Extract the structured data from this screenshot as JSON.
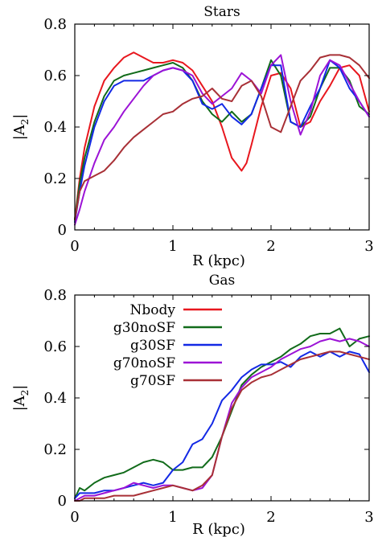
{
  "colors": {
    "Nbody": "#e8171e",
    "g30noSF": "#116b1a",
    "g30SF": "#1329e5",
    "g70noSF": "#9c13d6",
    "g70SF": "#a83036"
  },
  "chart_data": [
    {
      "type": "line",
      "title": "Stars",
      "xlabel": "R (kpc)",
      "ylabel": "|A2|",
      "xlim": [
        0,
        3
      ],
      "ylim": [
        0,
        0.8
      ],
      "xticks": [
        "0",
        "1",
        "2",
        "3"
      ],
      "yticks": [
        "0",
        "0.2",
        "0.4",
        "0.6",
        "0.8"
      ],
      "legend": "none",
      "series": [
        {
          "name": "Nbody",
          "x": [
            0,
            0.05,
            0.1,
            0.2,
            0.3,
            0.4,
            0.5,
            0.6,
            0.7,
            0.8,
            0.9,
            1.0,
            1.1,
            1.2,
            1.3,
            1.4,
            1.5,
            1.6,
            1.7,
            1.75,
            1.8,
            1.9,
            2.0,
            2.1,
            2.2,
            2.3,
            2.4,
            2.5,
            2.6,
            2.7,
            2.8,
            2.9,
            3.0
          ],
          "y": [
            0.04,
            0.2,
            0.32,
            0.48,
            0.58,
            0.63,
            0.67,
            0.69,
            0.67,
            0.65,
            0.65,
            0.66,
            0.65,
            0.62,
            0.56,
            0.5,
            0.4,
            0.28,
            0.23,
            0.26,
            0.33,
            0.48,
            0.6,
            0.61,
            0.55,
            0.4,
            0.42,
            0.5,
            0.56,
            0.63,
            0.64,
            0.6,
            0.46
          ]
        },
        {
          "name": "g30noSF",
          "x": [
            0,
            0.05,
            0.1,
            0.2,
            0.3,
            0.4,
            0.5,
            0.6,
            0.7,
            0.8,
            0.9,
            1.0,
            1.1,
            1.2,
            1.3,
            1.4,
            1.5,
            1.6,
            1.7,
            1.8,
            1.9,
            2.0,
            2.1,
            2.2,
            2.3,
            2.4,
            2.5,
            2.6,
            2.7,
            2.8,
            2.9,
            3.0
          ],
          "y": [
            0.04,
            0.18,
            0.28,
            0.42,
            0.52,
            0.58,
            0.6,
            0.61,
            0.62,
            0.63,
            0.64,
            0.65,
            0.63,
            0.58,
            0.5,
            0.45,
            0.42,
            0.46,
            0.42,
            0.45,
            0.55,
            0.66,
            0.6,
            0.42,
            0.4,
            0.44,
            0.55,
            0.63,
            0.63,
            0.58,
            0.48,
            0.45
          ]
        },
        {
          "name": "g30SF",
          "x": [
            0,
            0.05,
            0.1,
            0.2,
            0.3,
            0.4,
            0.5,
            0.6,
            0.7,
            0.8,
            0.9,
            1.0,
            1.1,
            1.2,
            1.3,
            1.4,
            1.5,
            1.6,
            1.7,
            1.8,
            1.9,
            2.0,
            2.1,
            2.2,
            2.3,
            2.4,
            2.5,
            2.6,
            2.7,
            2.8,
            2.9,
            3.0
          ],
          "y": [
            0.03,
            0.15,
            0.25,
            0.4,
            0.5,
            0.56,
            0.58,
            0.58,
            0.58,
            0.6,
            0.62,
            0.63,
            0.62,
            0.58,
            0.49,
            0.47,
            0.49,
            0.44,
            0.41,
            0.45,
            0.55,
            0.64,
            0.64,
            0.42,
            0.4,
            0.48,
            0.55,
            0.66,
            0.63,
            0.55,
            0.5,
            0.44
          ]
        },
        {
          "name": "g70noSF",
          "x": [
            0,
            0.05,
            0.1,
            0.2,
            0.3,
            0.4,
            0.5,
            0.6,
            0.7,
            0.8,
            0.9,
            1.0,
            1.1,
            1.2,
            1.3,
            1.4,
            1.5,
            1.6,
            1.7,
            1.8,
            1.9,
            2.0,
            2.1,
            2.2,
            2.3,
            2.4,
            2.5,
            2.6,
            2.7,
            2.8,
            2.9,
            3.0
          ],
          "y": [
            0.02,
            0.08,
            0.15,
            0.26,
            0.35,
            0.4,
            0.46,
            0.51,
            0.56,
            0.6,
            0.62,
            0.63,
            0.62,
            0.6,
            0.53,
            0.49,
            0.52,
            0.55,
            0.61,
            0.58,
            0.53,
            0.64,
            0.68,
            0.5,
            0.37,
            0.46,
            0.6,
            0.66,
            0.64,
            0.57,
            0.5,
            0.44
          ]
        },
        {
          "name": "g70SF",
          "x": [
            0,
            0.05,
            0.1,
            0.2,
            0.3,
            0.4,
            0.5,
            0.6,
            0.7,
            0.8,
            0.9,
            1.0,
            1.1,
            1.2,
            1.3,
            1.4,
            1.5,
            1.6,
            1.7,
            1.8,
            1.9,
            2.0,
            2.1,
            2.2,
            2.3,
            2.4,
            2.5,
            2.6,
            2.7,
            2.8,
            2.9,
            3.0
          ],
          "y": [
            0.04,
            0.15,
            0.19,
            0.21,
            0.23,
            0.27,
            0.32,
            0.36,
            0.39,
            0.42,
            0.45,
            0.46,
            0.49,
            0.51,
            0.52,
            0.55,
            0.51,
            0.5,
            0.56,
            0.58,
            0.52,
            0.4,
            0.38,
            0.48,
            0.58,
            0.62,
            0.67,
            0.68,
            0.68,
            0.67,
            0.64,
            0.59
          ]
        }
      ]
    },
    {
      "type": "line",
      "title": "Gas",
      "xlabel": "R (kpc)",
      "ylabel": "|A2|",
      "xlim": [
        0,
        3
      ],
      "ylim": [
        0,
        0.8
      ],
      "xticks": [
        "0",
        "1",
        "2",
        "3"
      ],
      "yticks": [
        "0",
        "0.2",
        "0.4",
        "0.6",
        "0.8"
      ],
      "legend": "top-left",
      "series": [
        {
          "name": "Nbody",
          "x": [],
          "y": []
        },
        {
          "name": "g30noSF",
          "x": [
            0,
            0.05,
            0.1,
            0.2,
            0.3,
            0.4,
            0.5,
            0.6,
            0.7,
            0.8,
            0.9,
            1.0,
            1.1,
            1.2,
            1.3,
            1.4,
            1.5,
            1.6,
            1.7,
            1.8,
            1.9,
            2.0,
            2.1,
            2.2,
            2.3,
            2.4,
            2.5,
            2.6,
            2.7,
            2.8,
            2.9,
            3.0
          ],
          "y": [
            0.01,
            0.05,
            0.04,
            0.07,
            0.09,
            0.1,
            0.11,
            0.13,
            0.15,
            0.16,
            0.15,
            0.12,
            0.12,
            0.13,
            0.13,
            0.17,
            0.25,
            0.35,
            0.45,
            0.49,
            0.52,
            0.54,
            0.56,
            0.59,
            0.61,
            0.64,
            0.65,
            0.65,
            0.67,
            0.6,
            0.63,
            0.64
          ]
        },
        {
          "name": "g30SF",
          "x": [
            0,
            0.05,
            0.1,
            0.2,
            0.3,
            0.4,
            0.5,
            0.6,
            0.7,
            0.8,
            0.9,
            1.0,
            1.1,
            1.2,
            1.3,
            1.4,
            1.5,
            1.6,
            1.7,
            1.8,
            1.9,
            2.0,
            2.1,
            2.2,
            2.3,
            2.4,
            2.5,
            2.6,
            2.7,
            2.8,
            2.9,
            3.0
          ],
          "y": [
            0.01,
            0.03,
            0.03,
            0.03,
            0.04,
            0.04,
            0.05,
            0.06,
            0.07,
            0.06,
            0.07,
            0.12,
            0.15,
            0.22,
            0.24,
            0.3,
            0.39,
            0.43,
            0.48,
            0.51,
            0.53,
            0.53,
            0.54,
            0.52,
            0.56,
            0.58,
            0.56,
            0.58,
            0.56,
            0.58,
            0.57,
            0.5
          ]
        },
        {
          "name": "g70noSF",
          "x": [
            0,
            0.05,
            0.1,
            0.2,
            0.3,
            0.4,
            0.5,
            0.6,
            0.7,
            0.8,
            0.9,
            1.0,
            1.1,
            1.2,
            1.3,
            1.4,
            1.5,
            1.6,
            1.7,
            1.8,
            1.9,
            2.0,
            2.1,
            2.2,
            2.3,
            2.4,
            2.5,
            2.6,
            2.7,
            2.8,
            2.9,
            3.0
          ],
          "y": [
            0.0,
            0.01,
            0.02,
            0.02,
            0.03,
            0.04,
            0.05,
            0.07,
            0.06,
            0.05,
            0.06,
            0.06,
            0.05,
            0.04,
            0.05,
            0.1,
            0.25,
            0.38,
            0.44,
            0.48,
            0.5,
            0.52,
            0.55,
            0.57,
            0.59,
            0.6,
            0.62,
            0.63,
            0.62,
            0.63,
            0.62,
            0.6
          ]
        },
        {
          "name": "g70SF",
          "x": [
            0,
            0.05,
            0.1,
            0.2,
            0.3,
            0.4,
            0.5,
            0.6,
            0.7,
            0.8,
            0.9,
            1.0,
            1.1,
            1.2,
            1.3,
            1.4,
            1.5,
            1.6,
            1.7,
            1.8,
            1.9,
            2.0,
            2.1,
            2.2,
            2.3,
            2.4,
            2.5,
            2.6,
            2.7,
            2.8,
            2.9,
            3.0
          ],
          "y": [
            0.0,
            0.0,
            0.01,
            0.01,
            0.01,
            0.02,
            0.02,
            0.02,
            0.03,
            0.04,
            0.05,
            0.06,
            0.05,
            0.04,
            0.06,
            0.1,
            0.25,
            0.36,
            0.43,
            0.46,
            0.48,
            0.49,
            0.51,
            0.53,
            0.55,
            0.56,
            0.57,
            0.58,
            0.58,
            0.57,
            0.56,
            0.55
          ]
        }
      ]
    }
  ]
}
